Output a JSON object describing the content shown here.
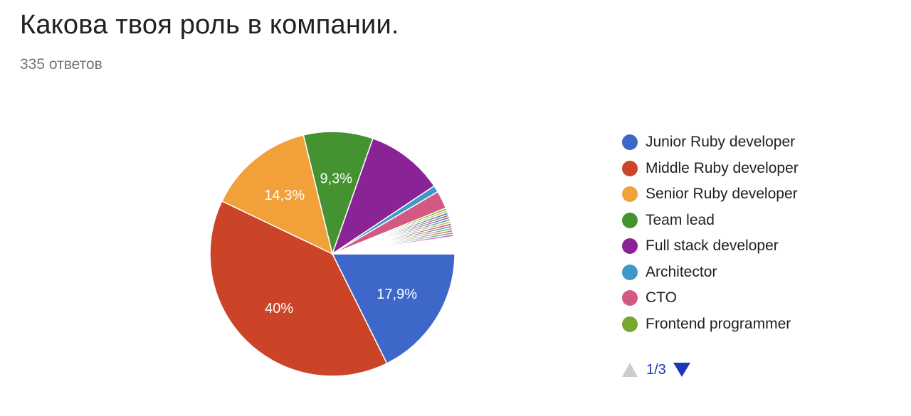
{
  "title": "Какова твоя роль в компании.",
  "subtitle": "335 ответов",
  "chart_data": {
    "type": "pie",
    "total_responses": 335,
    "legend_position": "right",
    "slices": [
      {
        "label": "Junior Ruby developer",
        "value": 17.9,
        "color": "#3d68c9",
        "shown_label": "17,9%"
      },
      {
        "label": "Middle Ruby developer",
        "value": 40.0,
        "color": "#cc4428",
        "shown_label": "40%"
      },
      {
        "label": "Senior Ruby developer",
        "value": 14.3,
        "color": "#f2a03a",
        "shown_label": "14,3%"
      },
      {
        "label": "Team lead",
        "value": 9.3,
        "color": "#459330",
        "shown_label": "9,3%"
      },
      {
        "label": "Full stack developer",
        "value": 10.4,
        "color": "#8a2496"
      },
      {
        "label": "Architector",
        "value": 0.9,
        "color": "#3d9ac8"
      },
      {
        "label": "CTO",
        "value": 2.4,
        "color": "#d35882"
      },
      {
        "label": "Frontend programmer",
        "value": 0.3,
        "color": "#77a72f"
      },
      {
        "value": 0.3,
        "color": "#b8c43e"
      },
      {
        "value": 0.3,
        "color": "#4a6fc9"
      },
      {
        "value": 0.3,
        "color": "#a06a55"
      },
      {
        "value": 0.3,
        "color": "#7c5fb0"
      },
      {
        "value": 0.3,
        "color": "#3fa99a"
      },
      {
        "value": 0.3,
        "color": "#e0b040"
      },
      {
        "value": 0.3,
        "color": "#c44b6b"
      },
      {
        "value": 0.3,
        "color": "#5a86d6"
      },
      {
        "value": 0.3,
        "color": "#8cb04a"
      },
      {
        "value": 0.3,
        "color": "#d07a44"
      },
      {
        "value": 0.3,
        "color": "#6b9bc7"
      },
      {
        "value": 0.3,
        "color": "#b36bb3"
      },
      {
        "value": 2.3,
        "color": "#ffffff"
      }
    ]
  },
  "pager": {
    "text": "1/3",
    "color": "#1a37b8",
    "disabled_color": "#cccccc"
  }
}
